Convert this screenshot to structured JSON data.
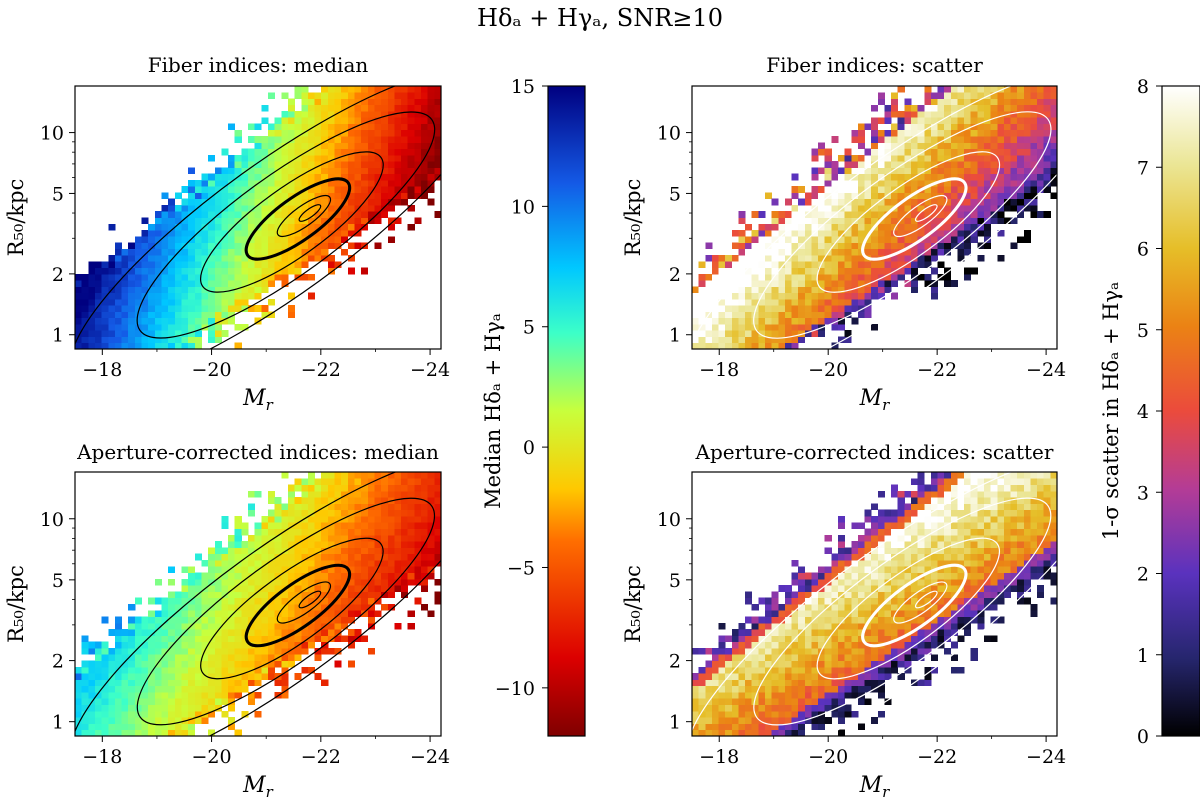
{
  "figure_title": "Hδₐ + Hγₐ, SNR≥10",
  "chart_data": [
    {
      "id": "fiber-median",
      "type": "heatmap",
      "title": "Fiber indices: median",
      "xlabel": "M_r",
      "ylabel": "R₅₀/kpc",
      "xlim": [
        -17.5,
        -24.2
      ],
      "ylim": [
        0.85,
        17
      ],
      "yscale": "log",
      "xticks": [
        -18,
        -20,
        -22,
        -24
      ],
      "xtick_labels": [
        "−18",
        "−20",
        "−22",
        "−24"
      ],
      "yticks": [
        1,
        2,
        5,
        10
      ],
      "ytick_labels": [
        "1",
        "2",
        "5",
        "10"
      ],
      "colormap": "jet_r",
      "clim": [
        -12,
        15
      ],
      "ridge": {
        "mr": [
          -17.5,
          -24.2
        ],
        "log_r50": [
          -0.08,
          1.23
        ]
      },
      "core_value_range": [
        14,
        -10
      ],
      "contour_center": {
        "mr": -21.8,
        "r50": 4.0
      },
      "contour_color": "#000000"
    },
    {
      "id": "fiber-scatter",
      "type": "heatmap",
      "title": "Fiber indices: scatter",
      "xlabel": "M_r",
      "ylabel": "R₅₀/kpc",
      "xlim": [
        -17.5,
        -24.2
      ],
      "ylim": [
        0.85,
        17
      ],
      "yscale": "log",
      "xticks": [
        -18,
        -20,
        -22,
        -24
      ],
      "xtick_labels": [
        "−18",
        "−20",
        "−22",
        "−24"
      ],
      "yticks": [
        1,
        2,
        5,
        10
      ],
      "ytick_labels": [
        "1",
        "2",
        "5",
        "10"
      ],
      "colormap": "CMRmap",
      "clim": [
        0,
        8
      ],
      "ridge": {
        "mr": [
          -17.5,
          -24.2
        ],
        "log_r50": [
          -0.08,
          1.23
        ]
      },
      "core_value_range": [
        7.6,
        4.2
      ],
      "contour_center": {
        "mr": -21.8,
        "r50": 4.0
      },
      "contour_color": "#ffffff"
    },
    {
      "id": "aperture-median",
      "type": "heatmap",
      "title": "Aperture-corrected indices: median",
      "xlabel": "M_r",
      "ylabel": "R₅₀/kpc",
      "xlim": [
        -17.5,
        -24.2
      ],
      "ylim": [
        0.85,
        17
      ],
      "yscale": "log",
      "xticks": [
        -18,
        -20,
        -22,
        -24
      ],
      "xtick_labels": [
        "−18",
        "−20",
        "−22",
        "−24"
      ],
      "yticks": [
        1,
        2,
        5,
        10
      ],
      "ytick_labels": [
        "1",
        "2",
        "5",
        "10"
      ],
      "colormap": "jet_r",
      "clim": [
        -12,
        15
      ],
      "ridge": {
        "mr": [
          -17.5,
          -24.2
        ],
        "log_r50": [
          -0.08,
          1.23
        ]
      },
      "core_value_range": [
        6,
        -7
      ],
      "contour_center": {
        "mr": -21.8,
        "r50": 4.0
      },
      "contour_color": "#000000"
    },
    {
      "id": "aperture-scatter",
      "type": "heatmap",
      "title": "Aperture-corrected indices: scatter",
      "xlabel": "M_r",
      "ylabel": "R₅₀/kpc",
      "xlim": [
        -17.5,
        -24.2
      ],
      "ylim": [
        0.85,
        17
      ],
      "yscale": "log",
      "xticks": [
        -18,
        -20,
        -22,
        -24
      ],
      "xtick_labels": [
        "−18",
        "−20",
        "−22",
        "−24"
      ],
      "yticks": [
        1,
        2,
        5,
        10
      ],
      "ytick_labels": [
        "1",
        "2",
        "5",
        "10"
      ],
      "colormap": "CMRmap",
      "clim": [
        0,
        8
      ],
      "ridge": {
        "mr": [
          -17.5,
          -24.2
        ],
        "log_r50": [
          -0.08,
          1.23
        ]
      },
      "core_value_range": [
        5.5,
        6.8
      ],
      "contour_center": {
        "mr": -21.8,
        "r50": 4.0
      },
      "contour_color": "#ffffff"
    }
  ],
  "colorbars": [
    {
      "id": "median-colorbar",
      "label": "Median Hδₐ + Hγₐ",
      "colormap": "jet_r",
      "range": [
        -12,
        15
      ],
      "ticks": [
        15,
        10,
        5,
        0,
        -5,
        -10
      ],
      "tick_labels": [
        "15",
        "10",
        "5",
        "0",
        "−5",
        "−10"
      ]
    },
    {
      "id": "scatter-colorbar",
      "label": "1-σ scatter in Hδₐ + Hγₐ",
      "colormap": "CMRmap",
      "range": [
        0,
        8
      ],
      "ticks": [
        8,
        7,
        6,
        5,
        4,
        3,
        2,
        1,
        0
      ],
      "tick_labels": [
        "8",
        "7",
        "6",
        "5",
        "4",
        "3",
        "2",
        "1",
        "0"
      ]
    }
  ]
}
